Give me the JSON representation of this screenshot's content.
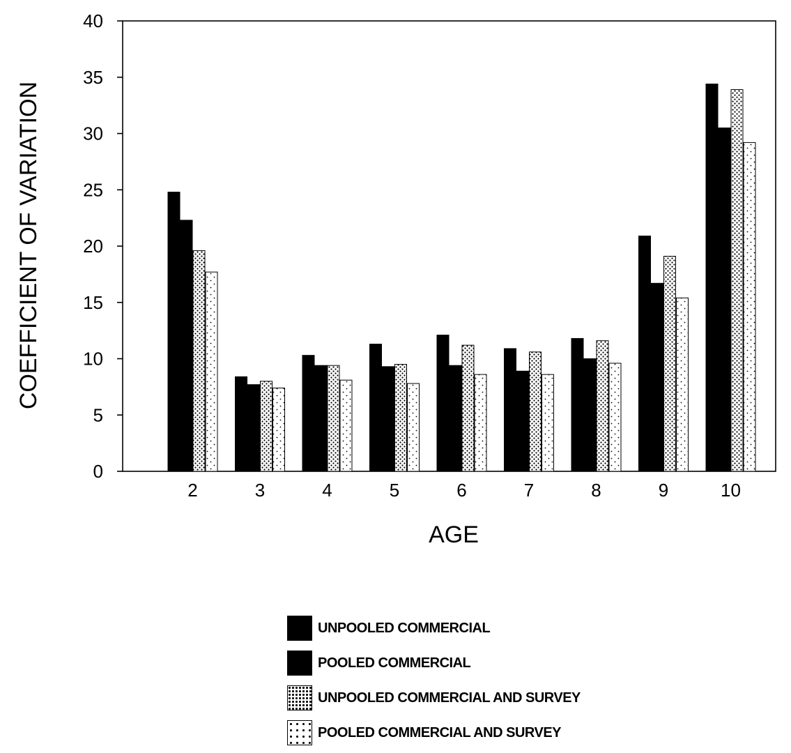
{
  "chart_data": {
    "type": "bar",
    "xlabel": "AGE",
    "ylabel": "COEFFICIENT OF VARIATION",
    "ylim": [
      0,
      40
    ],
    "yticks": [
      "0",
      "5",
      "10",
      "15",
      "20",
      "25",
      "30",
      "35",
      "40"
    ],
    "categories": [
      "2",
      "3",
      "4",
      "5",
      "6",
      "7",
      "8",
      "9",
      "10"
    ],
    "grid": false,
    "legend_position": "bottom",
    "series": [
      {
        "name": "UNPOOLED COMMERCIAL",
        "pattern": "solid",
        "values": [
          24.8,
          8.4,
          10.3,
          11.3,
          12.1,
          10.9,
          11.8,
          20.9,
          34.4
        ]
      },
      {
        "name": "POOLED COMMERCIAL",
        "pattern": "solid",
        "values": [
          22.3,
          7.7,
          9.4,
          9.3,
          9.4,
          8.9,
          10.0,
          16.7,
          30.5
        ]
      },
      {
        "name": "UNPOOLED COMMERCIAL AND SURVEY",
        "pattern": "dense-dots",
        "values": [
          19.6,
          8.0,
          9.4,
          9.5,
          11.2,
          10.6,
          11.6,
          19.1,
          33.9
        ]
      },
      {
        "name": "POOLED COMMERCIAL AND SURVEY",
        "pattern": "sparse-dots",
        "values": [
          17.7,
          7.4,
          8.1,
          7.8,
          8.6,
          8.6,
          9.6,
          15.4,
          29.2
        ]
      }
    ]
  }
}
